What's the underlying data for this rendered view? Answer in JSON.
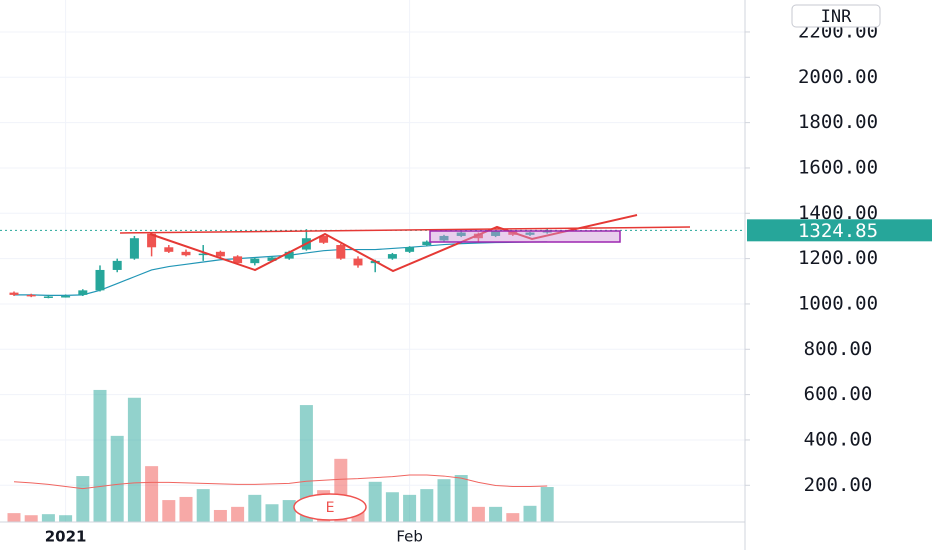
{
  "chart_data": {
    "type": "candlestick",
    "currency": "INR",
    "event_marker": "E",
    "last_price": 1324.85,
    "categories": [
      null,
      null,
      null,
      "2021",
      null,
      null,
      null,
      null,
      null,
      null,
      null,
      null,
      null,
      null,
      null,
      null,
      null,
      null,
      null,
      null,
      null,
      null,
      null,
      "Feb",
      null,
      null,
      null,
      null,
      null,
      null,
      null,
      null
    ],
    "open": [
      1050,
      1040,
      1032,
      1033,
      1040,
      1060,
      1150,
      1200,
      1310,
      1250,
      1230,
      1218,
      1230,
      1210,
      1180,
      1190,
      1200,
      1240,
      1300,
      1260,
      1200,
      1180,
      1200,
      1230,
      1260,
      1280,
      1300,
      1310,
      1300,
      1320,
      1305,
      1315
    ],
    "high": [
      1055,
      1045,
      1040,
      1042,
      1065,
      1170,
      1200,
      1300,
      1315,
      1260,
      1240,
      1260,
      1235,
      1215,
      1205,
      1210,
      1235,
      1330,
      1305,
      1265,
      1210,
      1195,
      1225,
      1255,
      1280,
      1305,
      1320,
      1315,
      1325,
      1325,
      1318,
      1330
    ],
    "low": [
      1035,
      1030,
      1025,
      1028,
      1035,
      1055,
      1140,
      1195,
      1210,
      1225,
      1210,
      1190,
      1205,
      1175,
      1170,
      1185,
      1195,
      1235,
      1265,
      1195,
      1160,
      1140,
      1195,
      1225,
      1255,
      1275,
      1295,
      1270,
      1295,
      1300,
      1300,
      1310
    ],
    "close": [
      1040,
      1035,
      1033,
      1035,
      1060,
      1150,
      1190,
      1290,
      1250,
      1230,
      1215,
      1222,
      1210,
      1180,
      1200,
      1205,
      1230,
      1290,
      1270,
      1200,
      1170,
      1190,
      1220,
      1250,
      1275,
      1300,
      1315,
      1290,
      1320,
      1305,
      1315,
      1325
    ],
    "ma": [
      1040,
      1040,
      1038,
      1038,
      1040,
      1060,
      1090,
      1120,
      1150,
      1165,
      1175,
      1185,
      1195,
      1200,
      1205,
      1210,
      1215,
      1225,
      1235,
      1240,
      1240,
      1240,
      1245,
      1250,
      1256,
      1262,
      1266,
      1269,
      1271,
      1272,
      1273,
      1274
    ],
    "ma_color": "#2196b6",
    "up_color": "#26a69a",
    "down_color": "#ef5350",
    "volume": [
      1.7,
      1.3,
      1.5,
      1.3,
      8.8,
      25.3,
      16.5,
      23.8,
      10.7,
      4.2,
      4.8,
      6.3,
      2.3,
      2.9,
      5.2,
      3.4,
      4.2,
      22.4,
      6.1,
      12.1,
      3.3,
      7.7,
      5.7,
      5.2,
      6.3,
      8.2,
      9.0,
      2.9,
      2.9,
      1.7,
      3.1,
      6.7
    ],
    "volume_ma": [
      7.7,
      7.5,
      7.2,
      6.8,
      6.4,
      6.8,
      7.2,
      7.5,
      7.6,
      7.6,
      7.5,
      7.4,
      7.3,
      7.2,
      7.2,
      7.3,
      7.4,
      7.8,
      8.0,
      8.2,
      8.3,
      8.5,
      8.7,
      9.0,
      9.0,
      8.8,
      8.4,
      7.6,
      7.0,
      6.8,
      6.8,
      6.9
    ],
    "volume_ma_color": "#f06560",
    "y2lim": [
      0,
      100
    ],
    "ylim": [
      38,
      2341
    ],
    "yticks": [
      {
        "value": 200,
        "label": "200.00"
      },
      {
        "value": 400,
        "label": "400.00"
      },
      {
        "value": 600,
        "label": "600.00"
      },
      {
        "value": 800,
        "label": "800.00"
      },
      {
        "value": 1000,
        "label": "1000.00"
      },
      {
        "value": 1200,
        "label": "1200.00"
      },
      {
        "value": 1400,
        "label": "1400.00"
      },
      {
        "value": 1600,
        "label": "1600.00"
      },
      {
        "value": 1800,
        "label": "1800.00"
      },
      {
        "value": 2000,
        "label": "2000.00"
      },
      {
        "value": 2200,
        "label": "2200.00"
      }
    ],
    "grid": true
  }
}
